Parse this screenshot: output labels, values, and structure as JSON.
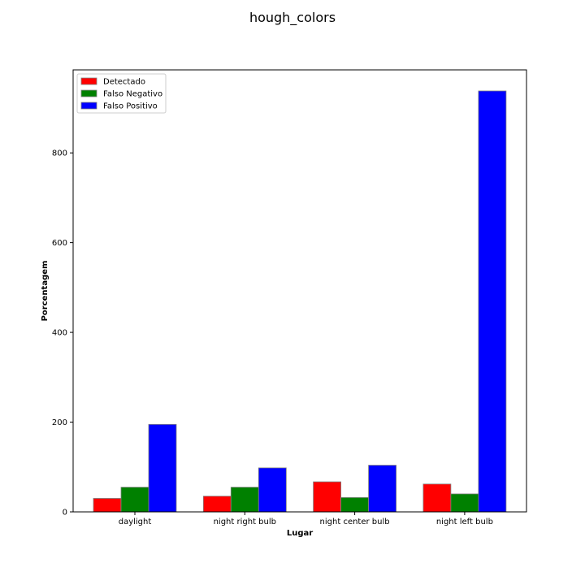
{
  "chart_data": {
    "type": "bar",
    "title": "hough_colors",
    "xlabel": "Lugar",
    "ylabel": "Porcentagem",
    "categories": [
      "daylight",
      "night right bulb",
      "night center bulb",
      "night left bulb"
    ],
    "series": [
      {
        "name": "Detectado",
        "color": "#ff0000",
        "values": [
          30,
          35,
          67,
          62
        ]
      },
      {
        "name": "Falso Negativo",
        "color": "#008000",
        "values": [
          55,
          55,
          32,
          40
        ]
      },
      {
        "name": "Falso Positivo",
        "color": "#0000ff",
        "values": [
          195,
          98,
          104,
          938
        ]
      }
    ],
    "ylim": [
      0,
      985
    ],
    "yticks": [
      0,
      200,
      400,
      600,
      800
    ],
    "grid": false,
    "legend_position": "top-left"
  }
}
